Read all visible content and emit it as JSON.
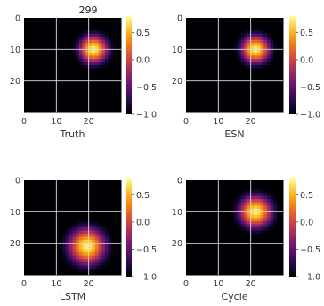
{
  "figure": {
    "title": "299"
  },
  "colors": {
    "cmap": "inferno",
    "grid": "#e0e0e0",
    "background": "#ffffff"
  },
  "chart_data": [
    {
      "type": "heatmap",
      "xlabel": "Truth",
      "xlim": [
        0,
        30
      ],
      "ylim": [
        0,
        30
      ],
      "y_inverted": true,
      "x_ticks": [
        "0",
        "10",
        "20"
      ],
      "y_ticks": [
        "0",
        "10",
        "20"
      ],
      "vmin": -1.0,
      "vmax": 0.8,
      "colorbar_ticks": [
        "0.5",
        "0.0",
        "−0.5",
        "−1.0"
      ],
      "blob": {
        "center_x": 21.5,
        "center_y": 10,
        "radius": 7,
        "peak": 0.8
      },
      "grid": true
    },
    {
      "type": "heatmap",
      "xlabel": "ESN",
      "xlim": [
        0,
        30
      ],
      "ylim": [
        0,
        30
      ],
      "y_inverted": true,
      "x_ticks": [
        "0",
        "10",
        "20"
      ],
      "y_ticks": [
        "0",
        "10",
        "20"
      ],
      "vmin": -1.0,
      "vmax": 0.8,
      "colorbar_ticks": [
        "0.5",
        "0.0",
        "−0.5",
        "−1.0"
      ],
      "blob": {
        "center_x": 21.5,
        "center_y": 10,
        "radius": 7,
        "peak": 0.8
      },
      "grid": true
    },
    {
      "type": "heatmap",
      "xlabel": "LSTM",
      "xlim": [
        0,
        30
      ],
      "ylim": [
        0,
        30
      ],
      "y_inverted": true,
      "x_ticks": [
        "0",
        "10",
        "20"
      ],
      "y_ticks": [
        "0",
        "10",
        "20"
      ],
      "vmin": -1.0,
      "vmax": 0.8,
      "colorbar_ticks": [
        "0.5",
        "0.0",
        "−0.5",
        "−1.0"
      ],
      "blob": {
        "center_x": 19.5,
        "center_y": 21,
        "radius": 9,
        "peak": 0.8
      },
      "grid": true
    },
    {
      "type": "heatmap",
      "xlabel": "Cycle",
      "xlim": [
        0,
        30
      ],
      "ylim": [
        0,
        30
      ],
      "y_inverted": true,
      "x_ticks": [
        "0",
        "10",
        "20"
      ],
      "y_ticks": [
        "0",
        "10",
        "20"
      ],
      "vmin": -1.0,
      "vmax": 0.8,
      "colorbar_ticks": [
        "0.5",
        "0.0",
        "−0.5",
        "−1.0"
      ],
      "blob": {
        "center_x": 21.5,
        "center_y": 10,
        "radius": 8,
        "peak": 0.8
      },
      "grid": true
    }
  ]
}
